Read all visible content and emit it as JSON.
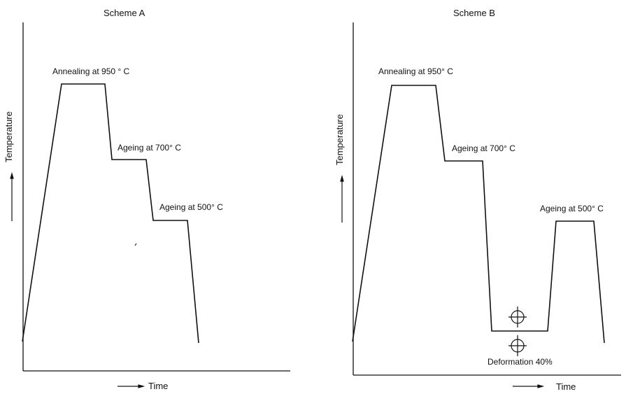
{
  "scheme_a": {
    "title": "Scheme A",
    "y_label": "Temperature",
    "x_label": "Time",
    "steps": [
      {
        "label": "Annealing at 950 ° C"
      },
      {
        "label": "Ageing at 700° C"
      },
      {
        "label": "Ageing at 500° C"
      }
    ]
  },
  "scheme_b": {
    "title": "Scheme B",
    "y_label": "Temperature",
    "x_label": "Time",
    "steps": [
      {
        "label": "Annealing at 950° C"
      },
      {
        "label": "Ageing at 700° C"
      },
      {
        "label": "Ageing at 500° C"
      }
    ],
    "deformation_label": "Deformation 40%"
  }
}
